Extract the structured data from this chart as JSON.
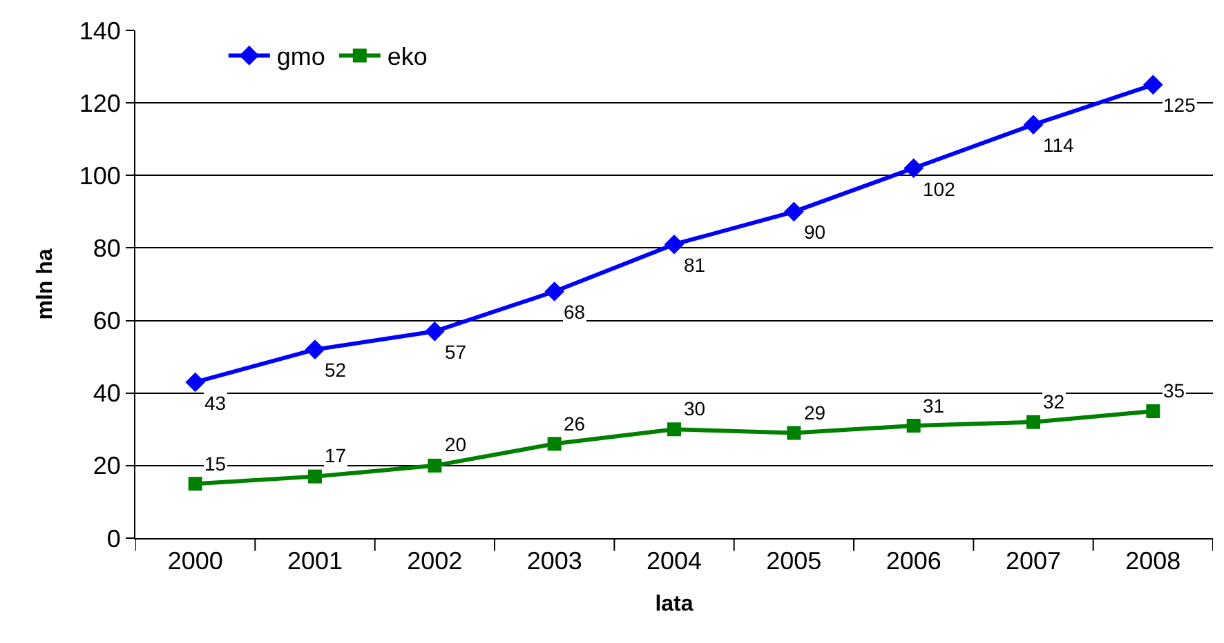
{
  "chart_data": {
    "type": "line",
    "xlabel": "lata",
    "ylabel": "mln ha",
    "categories": [
      "2000",
      "2001",
      "2002",
      "2003",
      "2004",
      "2005",
      "2006",
      "2007",
      "2008"
    ],
    "series": [
      {
        "name": "gmo",
        "color": "#0000ff",
        "marker": "diamond",
        "values": [
          43,
          52,
          57,
          68,
          81,
          90,
          102,
          114,
          125
        ]
      },
      {
        "name": "eko",
        "color": "#008000",
        "marker": "square",
        "values": [
          15,
          17,
          20,
          26,
          30,
          29,
          31,
          32,
          35
        ]
      }
    ],
    "ylim": [
      0,
      140
    ],
    "yticks": [
      0,
      20,
      40,
      60,
      80,
      100,
      120,
      140
    ],
    "grid": "y",
    "legend": "top left",
    "data_labels": true,
    "line_style": "solid"
  }
}
